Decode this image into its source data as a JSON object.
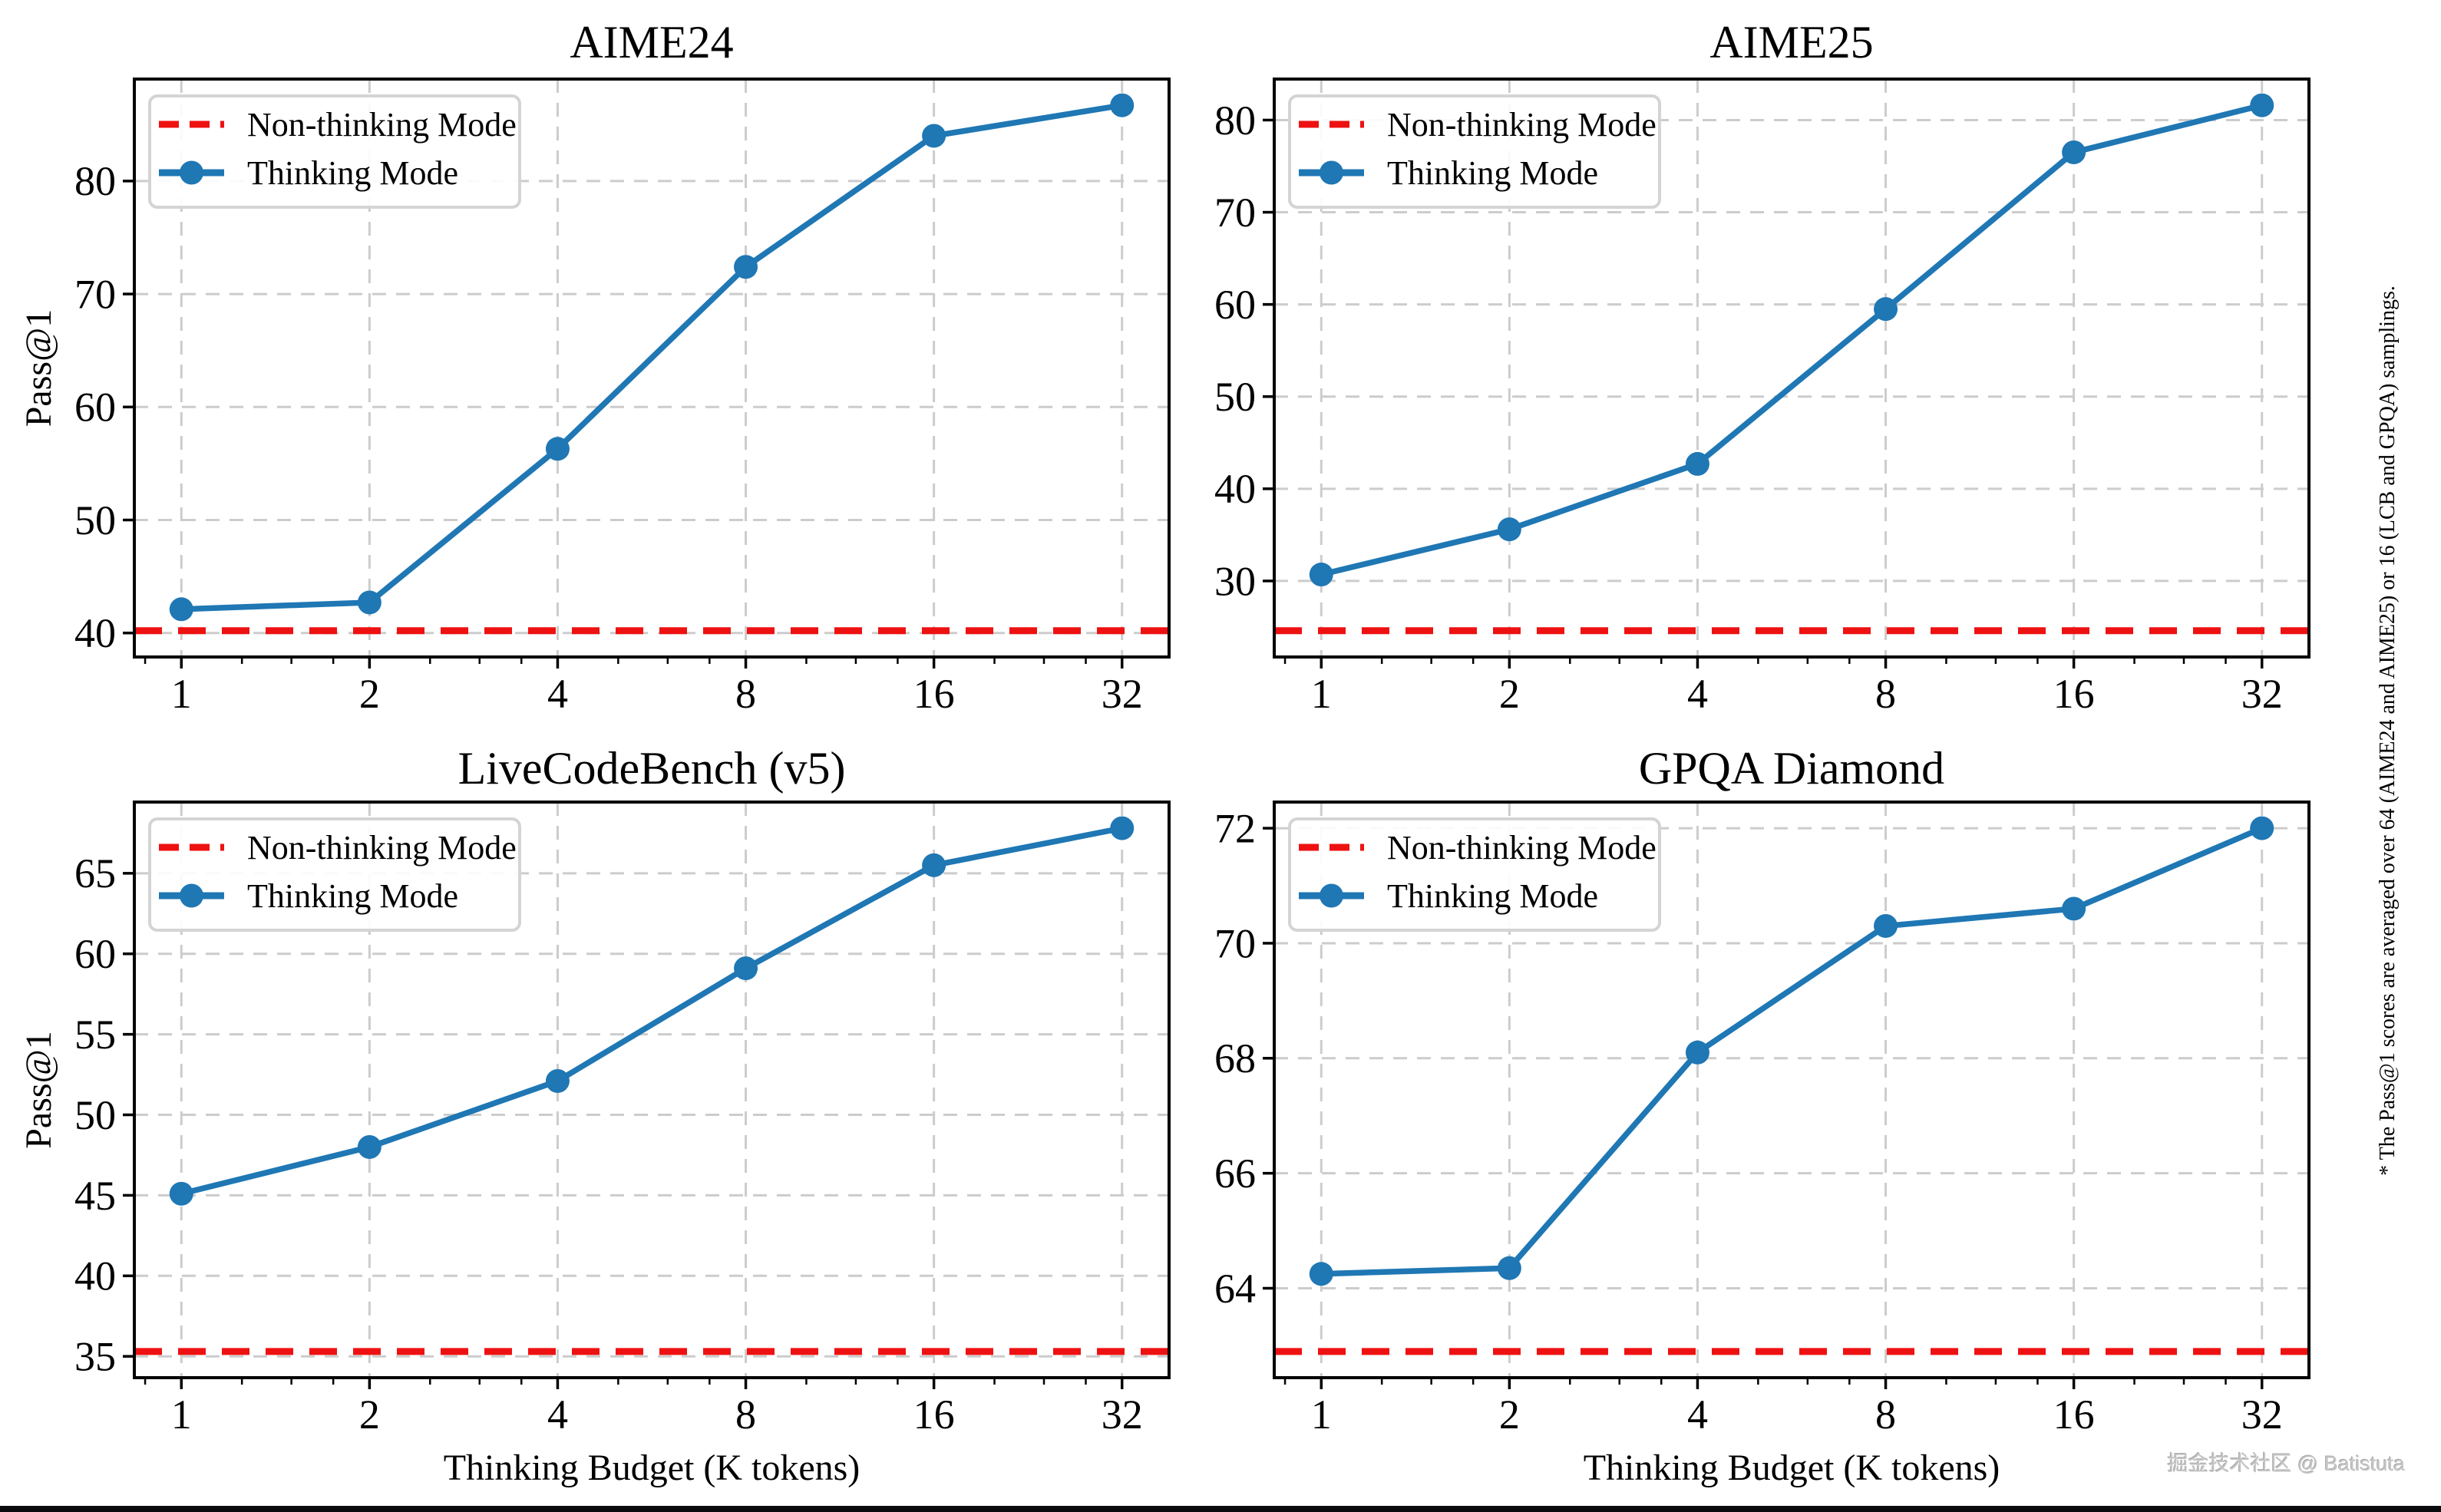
{
  "figure": {
    "watermark": "掘金技术社区 @ Batistuta",
    "side_note": "* The Pass@1 scores are averaged over 64 (AIME24 and AIME25) or 16 (LCB and GPQA) samplings.",
    "footer_bar_color": "#0b0b0e",
    "colors": {
      "thinking": "#1f77b4",
      "non_thinking": "#ee1111",
      "grid": "#cccccc",
      "spine": "#000000",
      "legend_border": "#d4d4d4",
      "text": "#000000"
    }
  },
  "legend": {
    "non_thinking_label": "Non-thinking Mode",
    "thinking_label": "Thinking Mode"
  },
  "axes": {
    "xlabel": "Thinking Budget (K tokens)",
    "ylabel": "Pass@1",
    "x_ticks": [
      1,
      2,
      4,
      8,
      16,
      32
    ],
    "x_scale": "log2"
  },
  "chart_data": [
    {
      "type": "line",
      "title": "AIME24",
      "x": [
        1,
        2,
        4,
        8,
        16,
        32
      ],
      "series": [
        {
          "name": "Thinking Mode",
          "values": [
            42.1,
            42.7,
            56.3,
            72.4,
            84.0,
            86.7
          ]
        },
        {
          "name": "Non-thinking Mode",
          "values": [
            40.2
          ],
          "style": "hline"
        }
      ],
      "y_ticks": [
        40,
        50,
        60,
        70,
        80
      ],
      "grid": true,
      "legend_position": "upper left"
    },
    {
      "type": "line",
      "title": "AIME25",
      "x": [
        1,
        2,
        4,
        8,
        16,
        32
      ],
      "series": [
        {
          "name": "Thinking Mode",
          "values": [
            30.7,
            35.6,
            42.7,
            59.5,
            76.5,
            81.6
          ]
        },
        {
          "name": "Non-thinking Mode",
          "values": [
            24.6
          ],
          "style": "hline"
        }
      ],
      "y_ticks": [
        30,
        40,
        50,
        60,
        70,
        80
      ],
      "grid": true,
      "legend_position": "upper left"
    },
    {
      "type": "line",
      "title": "LiveCodeBench (v5)",
      "x": [
        1,
        2,
        4,
        8,
        16,
        32
      ],
      "series": [
        {
          "name": "Thinking Mode",
          "values": [
            45.1,
            48.0,
            52.1,
            59.1,
            65.5,
            67.8
          ]
        },
        {
          "name": "Non-thinking Mode",
          "values": [
            35.3
          ],
          "style": "hline"
        }
      ],
      "y_ticks": [
        35,
        40,
        45,
        50,
        55,
        60,
        65
      ],
      "grid": true,
      "legend_position": "upper left"
    },
    {
      "type": "line",
      "title": "GPQA Diamond",
      "x": [
        1,
        2,
        4,
        8,
        16,
        32
      ],
      "series": [
        {
          "name": "Thinking Mode",
          "values": [
            64.25,
            64.35,
            68.1,
            70.3,
            70.6,
            72.0
          ]
        },
        {
          "name": "Non-thinking Mode",
          "values": [
            62.9
          ],
          "style": "hline"
        }
      ],
      "y_ticks": [
        64,
        66,
        68,
        70,
        72
      ],
      "grid": true,
      "legend_position": "upper left"
    }
  ]
}
